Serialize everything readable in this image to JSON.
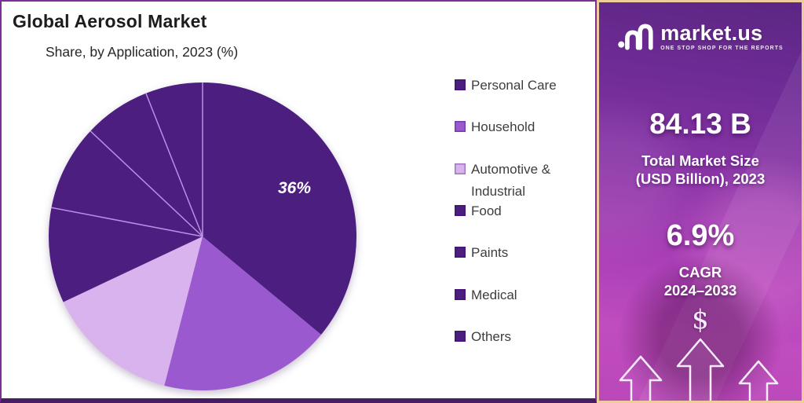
{
  "header": {
    "title": "Global Aerosol Market",
    "subtitle": "Share, by Application, 2023 (%)"
  },
  "chart_data": {
    "type": "pie",
    "title": "Global Aerosol Market",
    "subtitle": "Share, by Application, 2023 (%)",
    "unit": "%",
    "start_angle_deg": 0,
    "direction": "clockwise",
    "legend_position": "right",
    "slices": [
      {
        "label": "Personal Care",
        "value": 36,
        "display": "36%",
        "color": "#4b1e80"
      },
      {
        "label": "Household",
        "value": 18,
        "color": "#9b59d0"
      },
      {
        "label": "Automotive & Industrial",
        "value": 14,
        "color": "#d8b3ee"
      },
      {
        "label": "Food",
        "value": 10,
        "color": "#4b1e80"
      },
      {
        "label": "Paints",
        "value": 9,
        "color": "#4b1e80"
      },
      {
        "label": "Medical",
        "value": 7,
        "color": "#4b1e80"
      },
      {
        "label": "Others",
        "value": 6,
        "color": "#4b1e80"
      }
    ],
    "divider_color": "#b98fe6",
    "label_color": "#ffffff"
  },
  "sidebar": {
    "brand_name": "market.us",
    "brand_tagline": "ONE STOP SHOP FOR THE REPORTS",
    "market_size": {
      "value": "84.13 B",
      "label_line1": "Total Market Size",
      "label_line2": "(USD Billion), 2023"
    },
    "cagr": {
      "value": "6.9%",
      "label_line1": "CAGR",
      "label_line2": "2024–2033"
    },
    "dollar_symbol": "$"
  },
  "colors": {
    "dark_purple": "#4b1e80",
    "medium_purple": "#9b59d0",
    "light_purple": "#d8b3ee",
    "panel_border": "#7c2f92",
    "panel_bottom_bar": "#471d63",
    "sidebar_border": "#f0cb9b",
    "title_text": "#1c1c1e",
    "legend_text": "#3d3d3d",
    "sidebar_text": "#ffffff"
  }
}
